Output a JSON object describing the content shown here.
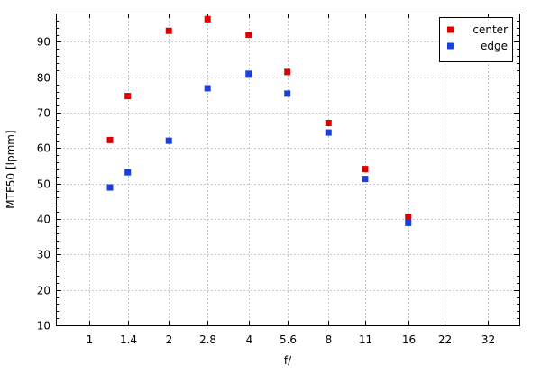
{
  "chart_data": {
    "type": "scatter",
    "title": "",
    "xlabel": "f/",
    "ylabel": "MTF50 [lpmm]",
    "x_scale": "log2",
    "x_ticks": [
      "1",
      "1.4",
      "2",
      "2.8",
      "4",
      "5.6",
      "8",
      "11",
      "16",
      "22",
      "32"
    ],
    "x_tick_values": [
      1,
      1.4,
      2,
      2.8,
      4,
      5.6,
      8,
      11,
      16,
      22,
      32
    ],
    "xlim": [
      0.75,
      42
    ],
    "y_ticks": [
      "10",
      "20",
      "30",
      "40",
      "50",
      "60",
      "70",
      "80",
      "90"
    ],
    "y_tick_values": [
      10,
      20,
      30,
      40,
      50,
      60,
      70,
      80,
      90
    ],
    "ylim": [
      10,
      98
    ],
    "grid": true,
    "legend_position": "top-right",
    "series": [
      {
        "name": "center",
        "color": "#dd0000",
        "points": [
          {
            "x": 1.2,
            "y": 62.3
          },
          {
            "x": 1.4,
            "y": 74.7
          },
          {
            "x": 2,
            "y": 93.1
          },
          {
            "x": 2.8,
            "y": 96.4
          },
          {
            "x": 4,
            "y": 92.0
          },
          {
            "x": 5.6,
            "y": 81.5
          },
          {
            "x": 8,
            "y": 67.1
          },
          {
            "x": 11,
            "y": 54.1
          },
          {
            "x": 16,
            "y": 40.6
          }
        ]
      },
      {
        "name": "edge",
        "color": "#1a3fdd",
        "points": [
          {
            "x": 1.2,
            "y": 48.9
          },
          {
            "x": 1.4,
            "y": 53.2
          },
          {
            "x": 2,
            "y": 62.1
          },
          {
            "x": 2.8,
            "y": 76.9
          },
          {
            "x": 4,
            "y": 81.0
          },
          {
            "x": 5.6,
            "y": 75.4
          },
          {
            "x": 8,
            "y": 64.4
          },
          {
            "x": 11,
            "y": 51.3
          },
          {
            "x": 16,
            "y": 38.9
          }
        ]
      }
    ]
  }
}
